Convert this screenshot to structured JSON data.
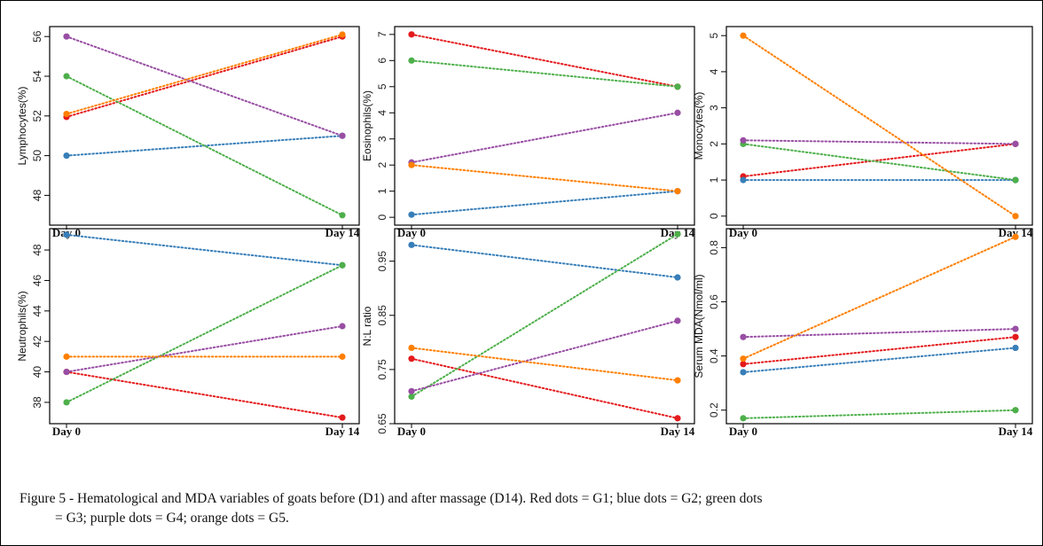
{
  "chart_data": [
    {
      "type": "line",
      "ylabel": "Lymphocytes(%)",
      "categories": [
        "Day 0",
        "Day 14"
      ],
      "ylim": [
        46.5,
        56.5
      ],
      "yticks": [
        48,
        50,
        52,
        54,
        56
      ],
      "series": [
        {
          "color": "#e41a1c",
          "values": [
            51.95,
            56.0
          ]
        },
        {
          "color": "#377eb8",
          "values": [
            50.0,
            51.0
          ]
        },
        {
          "color": "#4daf4a",
          "values": [
            54.0,
            47.0
          ]
        },
        {
          "color": "#984ea3",
          "values": [
            56.0,
            51.0
          ]
        },
        {
          "color": "#ff7f00",
          "values": [
            52.1,
            56.1
          ]
        }
      ]
    },
    {
      "type": "line",
      "ylabel": "Eosinophils(%)",
      "categories": [
        "Day 0",
        "Day 14"
      ],
      "ylim": [
        -0.3,
        7.3
      ],
      "yticks": [
        0,
        1,
        2,
        3,
        4,
        5,
        6,
        7
      ],
      "series": [
        {
          "color": "#e41a1c",
          "values": [
            7.0,
            5.0
          ]
        },
        {
          "color": "#377eb8",
          "values": [
            0.1,
            1.0
          ]
        },
        {
          "color": "#4daf4a",
          "values": [
            6.0,
            5.0
          ]
        },
        {
          "color": "#984ea3",
          "values": [
            2.1,
            4.0
          ]
        },
        {
          "color": "#ff7f00",
          "values": [
            2.0,
            1.0
          ]
        }
      ]
    },
    {
      "type": "line",
      "ylabel": "Monocytes(%)",
      "categories": [
        "Day 0",
        "Day 14"
      ],
      "ylim": [
        -0.25,
        5.25
      ],
      "yticks": [
        0,
        1,
        2,
        3,
        4,
        5
      ],
      "series": [
        {
          "color": "#e41a1c",
          "values": [
            1.1,
            2.0
          ]
        },
        {
          "color": "#377eb8",
          "values": [
            1.0,
            1.0
          ]
        },
        {
          "color": "#4daf4a",
          "values": [
            2.0,
            1.0
          ]
        },
        {
          "color": "#984ea3",
          "values": [
            2.1,
            2.0
          ]
        },
        {
          "color": "#ff7f00",
          "values": [
            5.0,
            0.0
          ]
        }
      ]
    },
    {
      "type": "line",
      "ylabel": "Neutrophils(%)",
      "categories": [
        "Day 0",
        "Day 14"
      ],
      "ylim": [
        36.6,
        49.4
      ],
      "yticks": [
        38,
        40,
        42,
        44,
        46,
        48
      ],
      "series": [
        {
          "color": "#e41a1c",
          "values": [
            40.0,
            37.0
          ]
        },
        {
          "color": "#377eb8",
          "values": [
            49.0,
            47.0
          ]
        },
        {
          "color": "#4daf4a",
          "values": [
            38.0,
            47.0
          ]
        },
        {
          "color": "#984ea3",
          "values": [
            40.0,
            43.0
          ]
        },
        {
          "color": "#ff7f00",
          "values": [
            41.0,
            41.0
          ]
        }
      ]
    },
    {
      "type": "line",
      "ylabel": "N:L ratio",
      "categories": [
        "Day 0",
        "Day 14"
      ],
      "ylim": [
        0.65,
        1.01
      ],
      "yticks": [
        0.65,
        0.75,
        0.85,
        0.95
      ],
      "series": [
        {
          "color": "#e41a1c",
          "values": [
            0.77,
            0.66
          ]
        },
        {
          "color": "#377eb8",
          "values": [
            0.98,
            0.92
          ]
        },
        {
          "color": "#4daf4a",
          "values": [
            0.7,
            1.0
          ]
        },
        {
          "color": "#984ea3",
          "values": [
            0.71,
            0.84
          ]
        },
        {
          "color": "#ff7f00",
          "values": [
            0.79,
            0.73
          ]
        }
      ]
    },
    {
      "type": "line",
      "ylabel": "Serum MDA(Nmol/ml)",
      "categories": [
        "Day 0",
        "Day 14"
      ],
      "ylim": [
        0.15,
        0.87
      ],
      "yticks": [
        0.2,
        0.4,
        0.6,
        0.8
      ],
      "series": [
        {
          "color": "#e41a1c",
          "values": [
            0.37,
            0.47
          ]
        },
        {
          "color": "#377eb8",
          "values": [
            0.34,
            0.43
          ]
        },
        {
          "color": "#4daf4a",
          "values": [
            0.17,
            0.2
          ]
        },
        {
          "color": "#984ea3",
          "values": [
            0.47,
            0.5
          ]
        },
        {
          "color": "#ff7f00",
          "values": [
            0.39,
            0.84
          ]
        }
      ]
    }
  ],
  "caption": {
    "line1": "Figure 5 - Hematological and MDA variables of goats before (D1) and after massage (D14). Red dots = G1; blue dots = G2; green dots",
    "line2": "= G3; purple dots = G4; orange dots = G5."
  }
}
